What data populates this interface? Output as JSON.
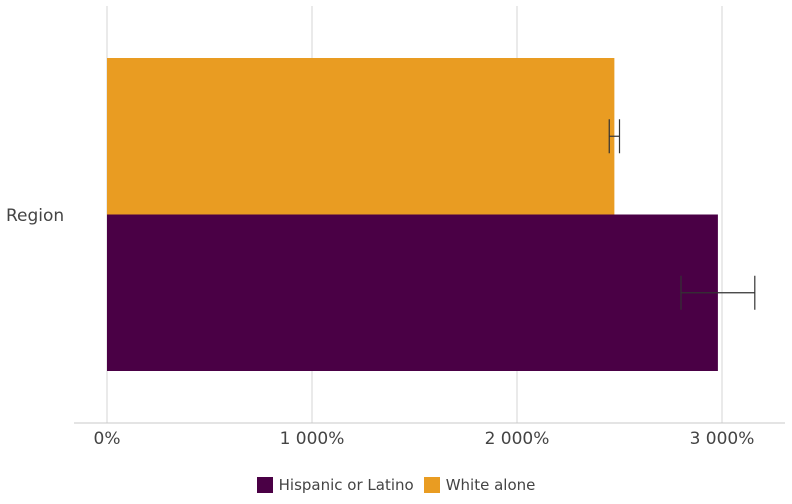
{
  "chart_data": {
    "type": "bar",
    "orientation": "horizontal",
    "categories": [
      "Region"
    ],
    "x_ticks": [
      "0%",
      "1 000%",
      "2 000%",
      "3 000%"
    ],
    "xlim": [
      0,
      3250
    ],
    "grid": true,
    "legend_position": "bottom",
    "series": [
      {
        "name": "Hispanic or Latino",
        "color": "#4a0045",
        "values": [
          2980
        ],
        "error": [
          [
            2800,
            3160
          ]
        ]
      },
      {
        "name": "White alone",
        "color": "#e99c22",
        "values": [
          2475
        ],
        "error": [
          [
            2450,
            2500
          ]
        ]
      }
    ]
  }
}
